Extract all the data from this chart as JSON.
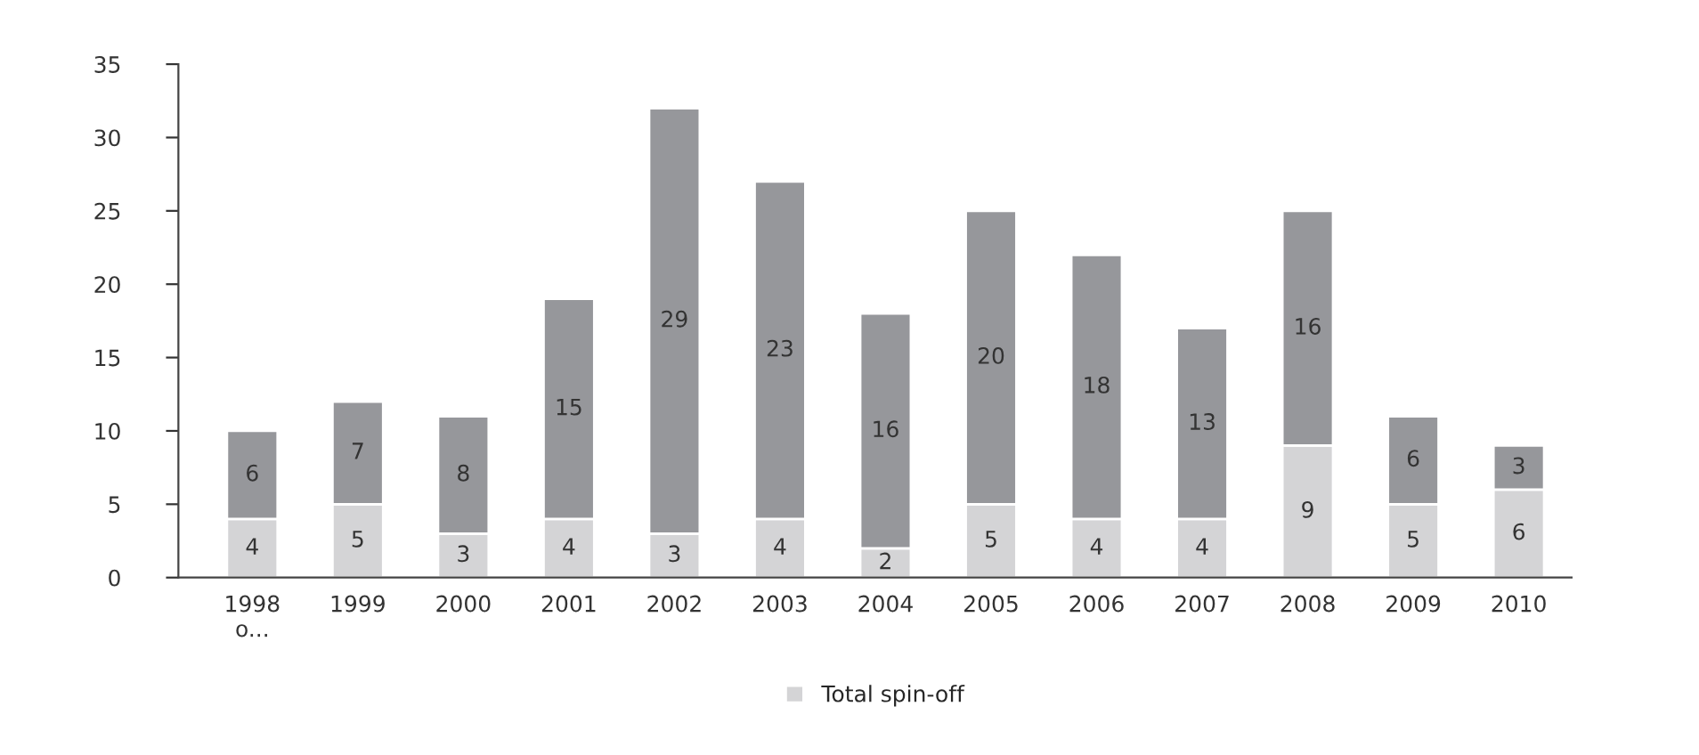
{
  "chart_data": {
    "type": "bar",
    "stacked": true,
    "data_labels": true,
    "legend": "bottom",
    "grid": false,
    "categories": [
      "1998 o...",
      "1999",
      "2000",
      "2001",
      "2002",
      "2003",
      "2004",
      "2005",
      "2006",
      "2007",
      "2008",
      "2009",
      "2010"
    ],
    "series": [
      {
        "name": "Total spin-off",
        "color": "#d4d4d6",
        "values": [
          4,
          5,
          3,
          4,
          3,
          4,
          2,
          5,
          4,
          4,
          9,
          5,
          6
        ]
      },
      {
        "color": "#96979b",
        "values": [
          6,
          7,
          8,
          15,
          29,
          23,
          16,
          20,
          18,
          13,
          16,
          6,
          3
        ]
      }
    ],
    "ylim": [
      0,
      35
    ],
    "yticks": [
      0,
      5,
      10,
      15,
      20,
      25,
      30,
      35
    ]
  }
}
